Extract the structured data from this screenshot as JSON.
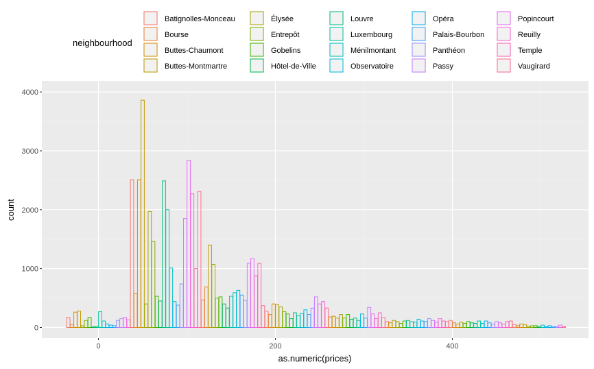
{
  "chart_data": {
    "type": "bar",
    "title": "",
    "xlabel": "as.numeric(prices)",
    "ylabel": "count",
    "xlim": [
      -65,
      555
    ],
    "ylim": [
      0,
      4100
    ],
    "x_ticks": [
      0,
      200,
      400
    ],
    "x_tick_labels": [
      "0",
      "200",
      "400"
    ],
    "y_ticks": [
      0,
      1000,
      2000,
      3000,
      4000
    ],
    "y_tick_labels": [
      "0",
      "1000",
      "2000",
      "3000",
      "4000"
    ],
    "grid": true,
    "legend_title": "neighbourhood",
    "legend_position": "top",
    "bin_width": 3.7,
    "legend": [
      {
        "name": "Batignolles-Monceau",
        "color": "#F8766D"
      },
      {
        "name": "Bourse",
        "color": "#EA8331"
      },
      {
        "name": "Buttes-Chaumont",
        "color": "#D89000"
      },
      {
        "name": "Buttes-Montmartre",
        "color": "#C09B00"
      },
      {
        "name": "Élysée",
        "color": "#A3A500"
      },
      {
        "name": "Entrepôt",
        "color": "#7CAE00"
      },
      {
        "name": "Gobelins",
        "color": "#39B600"
      },
      {
        "name": "Hôtel-de-Ville",
        "color": "#00BB4E"
      },
      {
        "name": "Louvre",
        "color": "#00BF7D"
      },
      {
        "name": "Luxembourg",
        "color": "#00C1A3"
      },
      {
        "name": "Ménilmontant",
        "color": "#00BFC4"
      },
      {
        "name": "Observatoire",
        "color": "#00BAE0"
      },
      {
        "name": "Opéra",
        "color": "#00B0F6"
      },
      {
        "name": "Palais-Bourbon",
        "color": "#35A2FF"
      },
      {
        "name": "Panthéon",
        "color": "#9590FF"
      },
      {
        "name": "Passy",
        "color": "#C77CFF"
      },
      {
        "name": "Popincourt",
        "color": "#E76BF3"
      },
      {
        "name": "Reuilly",
        "color": "#FA62DB"
      },
      {
        "name": "Temple",
        "color": "#FF62BC"
      },
      {
        "name": "Vaugirard",
        "color": "#FF6C91"
      }
    ],
    "bins": [
      {
        "x": -34,
        "y": 170,
        "color": "#F8766D"
      },
      {
        "x": -30,
        "y": 50,
        "color": "#EA8331"
      },
      {
        "x": -26,
        "y": 260,
        "color": "#D89000"
      },
      {
        "x": -22,
        "y": 280,
        "color": "#C09B00"
      },
      {
        "x": -18,
        "y": 30,
        "color": "#A3A500"
      },
      {
        "x": -14,
        "y": 120,
        "color": "#7CAE00"
      },
      {
        "x": -10,
        "y": 170,
        "color": "#39B600"
      },
      {
        "x": -6,
        "y": 10,
        "color": "#00BB4E"
      },
      {
        "x": -2,
        "y": 20,
        "color": "#00BF7D"
      },
      {
        "x": 2,
        "y": 270,
        "color": "#00C1A3"
      },
      {
        "x": 6,
        "y": 110,
        "color": "#00BFC4"
      },
      {
        "x": 10,
        "y": 60,
        "color": "#00BAE0"
      },
      {
        "x": 14,
        "y": 40,
        "color": "#00B0F6"
      },
      {
        "x": 18,
        "y": 30,
        "color": "#35A2FF"
      },
      {
        "x": 22,
        "y": 120,
        "color": "#9590FF"
      },
      {
        "x": 26,
        "y": 150,
        "color": "#C77CFF"
      },
      {
        "x": 30,
        "y": 170,
        "color": "#E76BF3"
      },
      {
        "x": 34,
        "y": 130,
        "color": "#FA62DB"
      },
      {
        "x": 38,
        "y": 2510,
        "color": "#F8766D"
      },
      {
        "x": 42,
        "y": 580,
        "color": "#EA8331"
      },
      {
        "x": 46,
        "y": 2510,
        "color": "#D89000"
      },
      {
        "x": 50,
        "y": 3860,
        "color": "#C09B00"
      },
      {
        "x": 54,
        "y": 400,
        "color": "#A3A500"
      },
      {
        "x": 58,
        "y": 1970,
        "color": "#A3A500"
      },
      {
        "x": 62,
        "y": 1460,
        "color": "#7CAE00"
      },
      {
        "x": 66,
        "y": 530,
        "color": "#39B600"
      },
      {
        "x": 70,
        "y": 450,
        "color": "#00BB4E"
      },
      {
        "x": 74,
        "y": 2490,
        "color": "#00BF7D"
      },
      {
        "x": 78,
        "y": 2000,
        "color": "#00C1A3"
      },
      {
        "x": 82,
        "y": 1010,
        "color": "#00BFC4"
      },
      {
        "x": 86,
        "y": 440,
        "color": "#00BAE0"
      },
      {
        "x": 90,
        "y": 380,
        "color": "#35A2FF"
      },
      {
        "x": 94,
        "y": 740,
        "color": "#9590FF"
      },
      {
        "x": 98,
        "y": 1850,
        "color": "#C77CFF"
      },
      {
        "x": 102,
        "y": 2840,
        "color": "#E76BF3"
      },
      {
        "x": 106,
        "y": 2270,
        "color": "#FA62DB"
      },
      {
        "x": 110,
        "y": 1000,
        "color": "#FF62BC"
      },
      {
        "x": 114,
        "y": 2310,
        "color": "#FF6C91"
      },
      {
        "x": 118,
        "y": 470,
        "color": "#F8766D"
      },
      {
        "x": 122,
        "y": 690,
        "color": "#EA8331"
      },
      {
        "x": 126,
        "y": 1400,
        "color": "#C09B00"
      },
      {
        "x": 130,
        "y": 1070,
        "color": "#A3A500"
      },
      {
        "x": 134,
        "y": 500,
        "color": "#7CAE00"
      },
      {
        "x": 138,
        "y": 520,
        "color": "#39B600"
      },
      {
        "x": 142,
        "y": 400,
        "color": "#00BB4E"
      },
      {
        "x": 146,
        "y": 330,
        "color": "#00BF7D"
      },
      {
        "x": 150,
        "y": 530,
        "color": "#00C1A3"
      },
      {
        "x": 154,
        "y": 590,
        "color": "#00BFC4"
      },
      {
        "x": 158,
        "y": 630,
        "color": "#00BAE0"
      },
      {
        "x": 162,
        "y": 550,
        "color": "#35A2FF"
      },
      {
        "x": 166,
        "y": 460,
        "color": "#9590FF"
      },
      {
        "x": 170,
        "y": 1090,
        "color": "#C77CFF"
      },
      {
        "x": 174,
        "y": 1170,
        "color": "#E76BF3"
      },
      {
        "x": 178,
        "y": 880,
        "color": "#FA62DB"
      },
      {
        "x": 182,
        "y": 1090,
        "color": "#FF62BC"
      },
      {
        "x": 186,
        "y": 370,
        "color": "#FF6C91"
      },
      {
        "x": 190,
        "y": 280,
        "color": "#F8766D"
      },
      {
        "x": 194,
        "y": 220,
        "color": "#EA8331"
      },
      {
        "x": 198,
        "y": 400,
        "color": "#D89000"
      },
      {
        "x": 202,
        "y": 390,
        "color": "#C09B00"
      },
      {
        "x": 206,
        "y": 350,
        "color": "#A3A500"
      },
      {
        "x": 210,
        "y": 270,
        "color": "#7CAE00"
      },
      {
        "x": 214,
        "y": 230,
        "color": "#39B600"
      },
      {
        "x": 218,
        "y": 150,
        "color": "#00BB4E"
      },
      {
        "x": 222,
        "y": 250,
        "color": "#00BF7D"
      },
      {
        "x": 226,
        "y": 200,
        "color": "#00C1A3"
      },
      {
        "x": 230,
        "y": 240,
        "color": "#00BFC4"
      },
      {
        "x": 234,
        "y": 300,
        "color": "#00BAE0"
      },
      {
        "x": 238,
        "y": 220,
        "color": "#35A2FF"
      },
      {
        "x": 242,
        "y": 330,
        "color": "#9590FF"
      },
      {
        "x": 246,
        "y": 520,
        "color": "#C77CFF"
      },
      {
        "x": 250,
        "y": 400,
        "color": "#E76BF3"
      },
      {
        "x": 254,
        "y": 440,
        "color": "#FA62DB"
      },
      {
        "x": 258,
        "y": 330,
        "color": "#FF6C91"
      },
      {
        "x": 262,
        "y": 180,
        "color": "#EA8331"
      },
      {
        "x": 266,
        "y": 190,
        "color": "#D89000"
      },
      {
        "x": 270,
        "y": 160,
        "color": "#C09B00"
      },
      {
        "x": 274,
        "y": 220,
        "color": "#A3A500"
      },
      {
        "x": 278,
        "y": 160,
        "color": "#7CAE00"
      },
      {
        "x": 282,
        "y": 220,
        "color": "#39B600"
      },
      {
        "x": 286,
        "y": 140,
        "color": "#00BB4E"
      },
      {
        "x": 290,
        "y": 160,
        "color": "#00BF7D"
      },
      {
        "x": 294,
        "y": 120,
        "color": "#00C1A3"
      },
      {
        "x": 298,
        "y": 230,
        "color": "#00BAE0"
      },
      {
        "x": 302,
        "y": 160,
        "color": "#35A2FF"
      },
      {
        "x": 306,
        "y": 340,
        "color": "#C77CFF"
      },
      {
        "x": 310,
        "y": 230,
        "color": "#E76BF3"
      },
      {
        "x": 314,
        "y": 150,
        "color": "#FA62DB"
      },
      {
        "x": 318,
        "y": 250,
        "color": "#FF62BC"
      },
      {
        "x": 322,
        "y": 170,
        "color": "#FF6C91"
      },
      {
        "x": 326,
        "y": 100,
        "color": "#F8766D"
      },
      {
        "x": 330,
        "y": 80,
        "color": "#D89000"
      },
      {
        "x": 334,
        "y": 120,
        "color": "#C09B00"
      },
      {
        "x": 338,
        "y": 100,
        "color": "#A3A500"
      },
      {
        "x": 342,
        "y": 70,
        "color": "#7CAE00"
      },
      {
        "x": 346,
        "y": 110,
        "color": "#39B600"
      },
      {
        "x": 350,
        "y": 120,
        "color": "#00BF7D"
      },
      {
        "x": 354,
        "y": 100,
        "color": "#00C1A3"
      },
      {
        "x": 358,
        "y": 90,
        "color": "#00BFC4"
      },
      {
        "x": 362,
        "y": 140,
        "color": "#00BAE0"
      },
      {
        "x": 366,
        "y": 110,
        "color": "#00B0F6"
      },
      {
        "x": 370,
        "y": 100,
        "color": "#35A2FF"
      },
      {
        "x": 374,
        "y": 150,
        "color": "#9590FF"
      },
      {
        "x": 378,
        "y": 120,
        "color": "#C77CFF"
      },
      {
        "x": 382,
        "y": 90,
        "color": "#E76BF3"
      },
      {
        "x": 386,
        "y": 150,
        "color": "#FA62DB"
      },
      {
        "x": 390,
        "y": 110,
        "color": "#FF62BC"
      },
      {
        "x": 394,
        "y": 100,
        "color": "#FF6C91"
      },
      {
        "x": 398,
        "y": 120,
        "color": "#F8766D"
      },
      {
        "x": 402,
        "y": 80,
        "color": "#EA8331"
      },
      {
        "x": 406,
        "y": 60,
        "color": "#D89000"
      },
      {
        "x": 410,
        "y": 90,
        "color": "#A3A500"
      },
      {
        "x": 414,
        "y": 70,
        "color": "#7CAE00"
      },
      {
        "x": 418,
        "y": 100,
        "color": "#39B600"
      },
      {
        "x": 422,
        "y": 80,
        "color": "#00BB4E"
      },
      {
        "x": 426,
        "y": 70,
        "color": "#00BF7D"
      },
      {
        "x": 430,
        "y": 110,
        "color": "#00C1A3"
      },
      {
        "x": 434,
        "y": 70,
        "color": "#00BFC4"
      },
      {
        "x": 438,
        "y": 110,
        "color": "#00B0F6"
      },
      {
        "x": 442,
        "y": 80,
        "color": "#35A2FF"
      },
      {
        "x": 446,
        "y": 60,
        "color": "#9590FF"
      },
      {
        "x": 450,
        "y": 100,
        "color": "#C77CFF"
      },
      {
        "x": 454,
        "y": 80,
        "color": "#E76BF3"
      },
      {
        "x": 458,
        "y": 60,
        "color": "#FA62DB"
      },
      {
        "x": 462,
        "y": 100,
        "color": "#FF62BC"
      },
      {
        "x": 466,
        "y": 110,
        "color": "#FF6C91"
      },
      {
        "x": 470,
        "y": 50,
        "color": "#F8766D"
      },
      {
        "x": 474,
        "y": 30,
        "color": "#EA8331"
      },
      {
        "x": 478,
        "y": 60,
        "color": "#D89000"
      },
      {
        "x": 482,
        "y": 50,
        "color": "#C09B00"
      },
      {
        "x": 486,
        "y": 20,
        "color": "#A3A500"
      },
      {
        "x": 490,
        "y": 30,
        "color": "#7CAE00"
      },
      {
        "x": 494,
        "y": 30,
        "color": "#39B600"
      },
      {
        "x": 498,
        "y": 20,
        "color": "#00BB4E"
      },
      {
        "x": 502,
        "y": 40,
        "color": "#00BFC4"
      },
      {
        "x": 506,
        "y": 20,
        "color": "#00BAE0"
      },
      {
        "x": 510,
        "y": 30,
        "color": "#00B0F6"
      },
      {
        "x": 514,
        "y": 20,
        "color": "#35A2FF"
      },
      {
        "x": 518,
        "y": 20,
        "color": "#9590FF"
      },
      {
        "x": 522,
        "y": 40,
        "color": "#E76BF3"
      },
      {
        "x": 526,
        "y": 20,
        "color": "#FF6C91"
      }
    ]
  }
}
